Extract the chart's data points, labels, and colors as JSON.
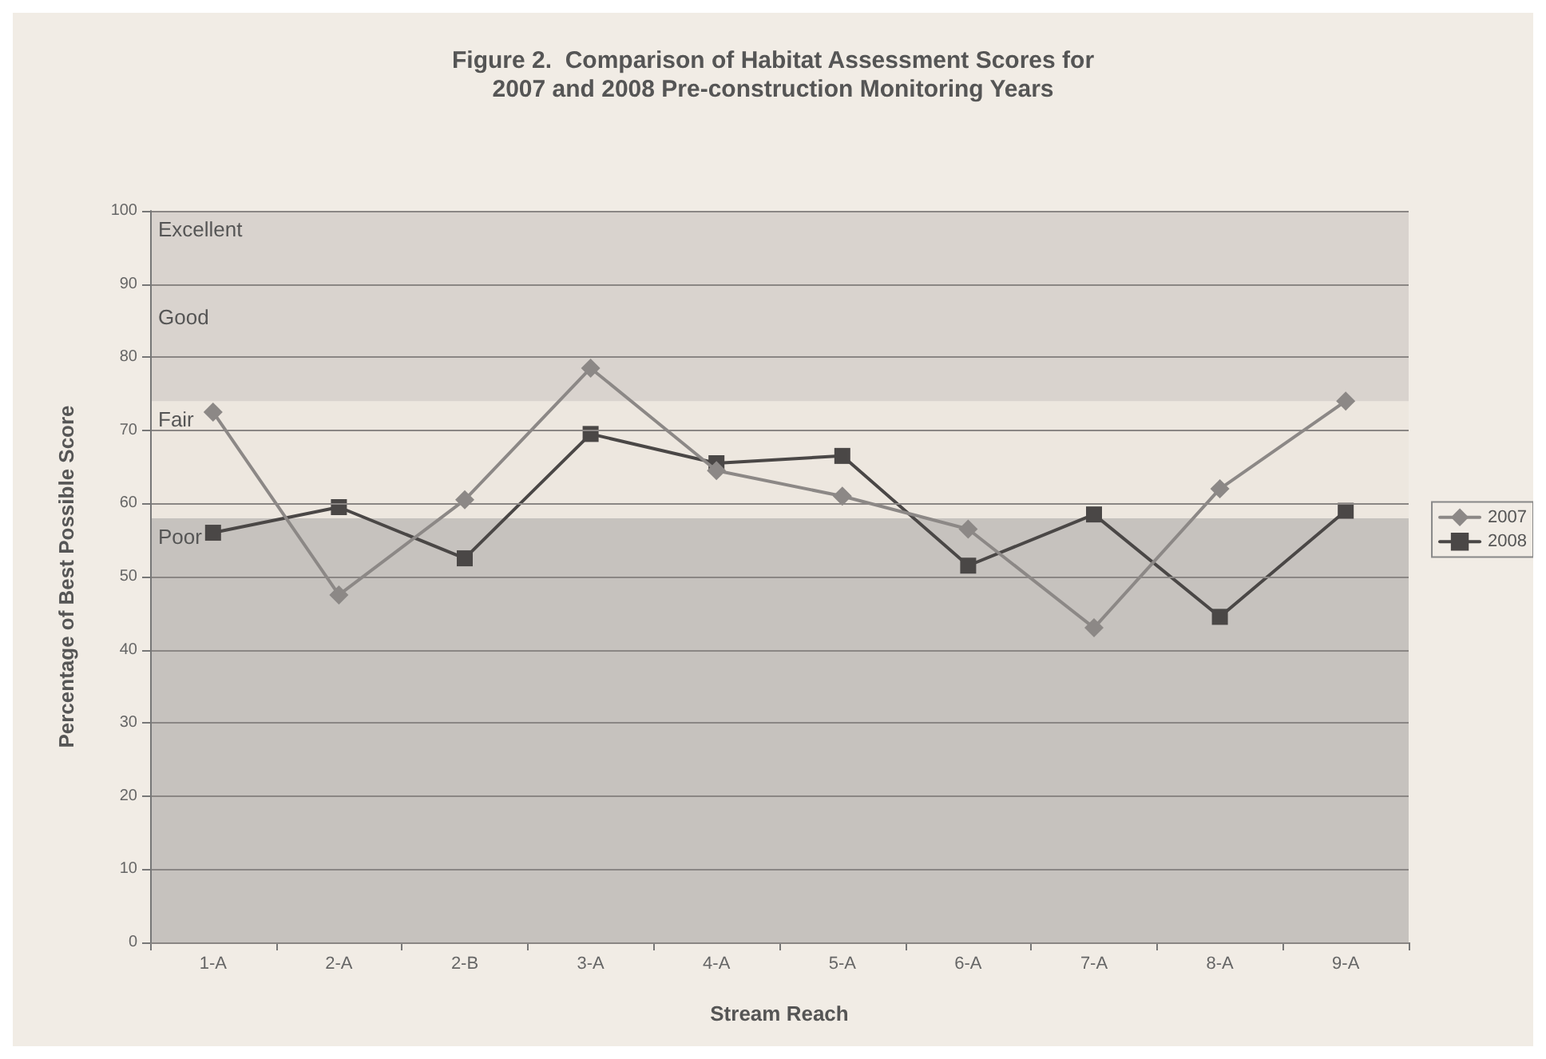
{
  "chart_data": {
    "type": "line",
    "title": "Figure 2.  Comparison of Habitat Assessment Scores for\n2007 and 2008 Pre-construction Monitoring Years",
    "xlabel": "Stream Reach",
    "ylabel": "Percentage of Best Possible Score",
    "categories": [
      "1-A",
      "2-A",
      "2-B",
      "3-A",
      "4-A",
      "5-A",
      "6-A",
      "7-A",
      "8-A",
      "9-A"
    ],
    "series": [
      {
        "name": "2007",
        "color": "#8c8886",
        "marker": "diamond",
        "values": [
          72.5,
          47.5,
          60.5,
          78.5,
          64.5,
          61,
          56.5,
          43,
          62,
          74
        ]
      },
      {
        "name": "2008",
        "color": "#4a4746",
        "marker": "square",
        "values": [
          56,
          59.5,
          52.5,
          69.5,
          65.5,
          66.5,
          51.5,
          58.5,
          44.5,
          59
        ]
      }
    ],
    "bands": [
      {
        "axis": "y",
        "from": 0,
        "to": 58,
        "label": "Poor",
        "color": "#c6c2be"
      },
      {
        "axis": "y",
        "from": 58,
        "to": 74,
        "label": "Fair",
        "color": "#ede7df"
      },
      {
        "axis": "y",
        "from": 74,
        "to": 88,
        "label": "Good",
        "color": "#d9d3ce"
      },
      {
        "axis": "y",
        "from": 88,
        "to": 100,
        "label": "Excellent",
        "color": "#d9d3ce"
      }
    ],
    "ylim": [
      0,
      100
    ],
    "yticks": [
      0,
      10,
      20,
      30,
      40,
      50,
      60,
      70,
      80,
      90,
      100
    ],
    "grid": "y",
    "legend": "right",
    "line_style": "solid"
  }
}
